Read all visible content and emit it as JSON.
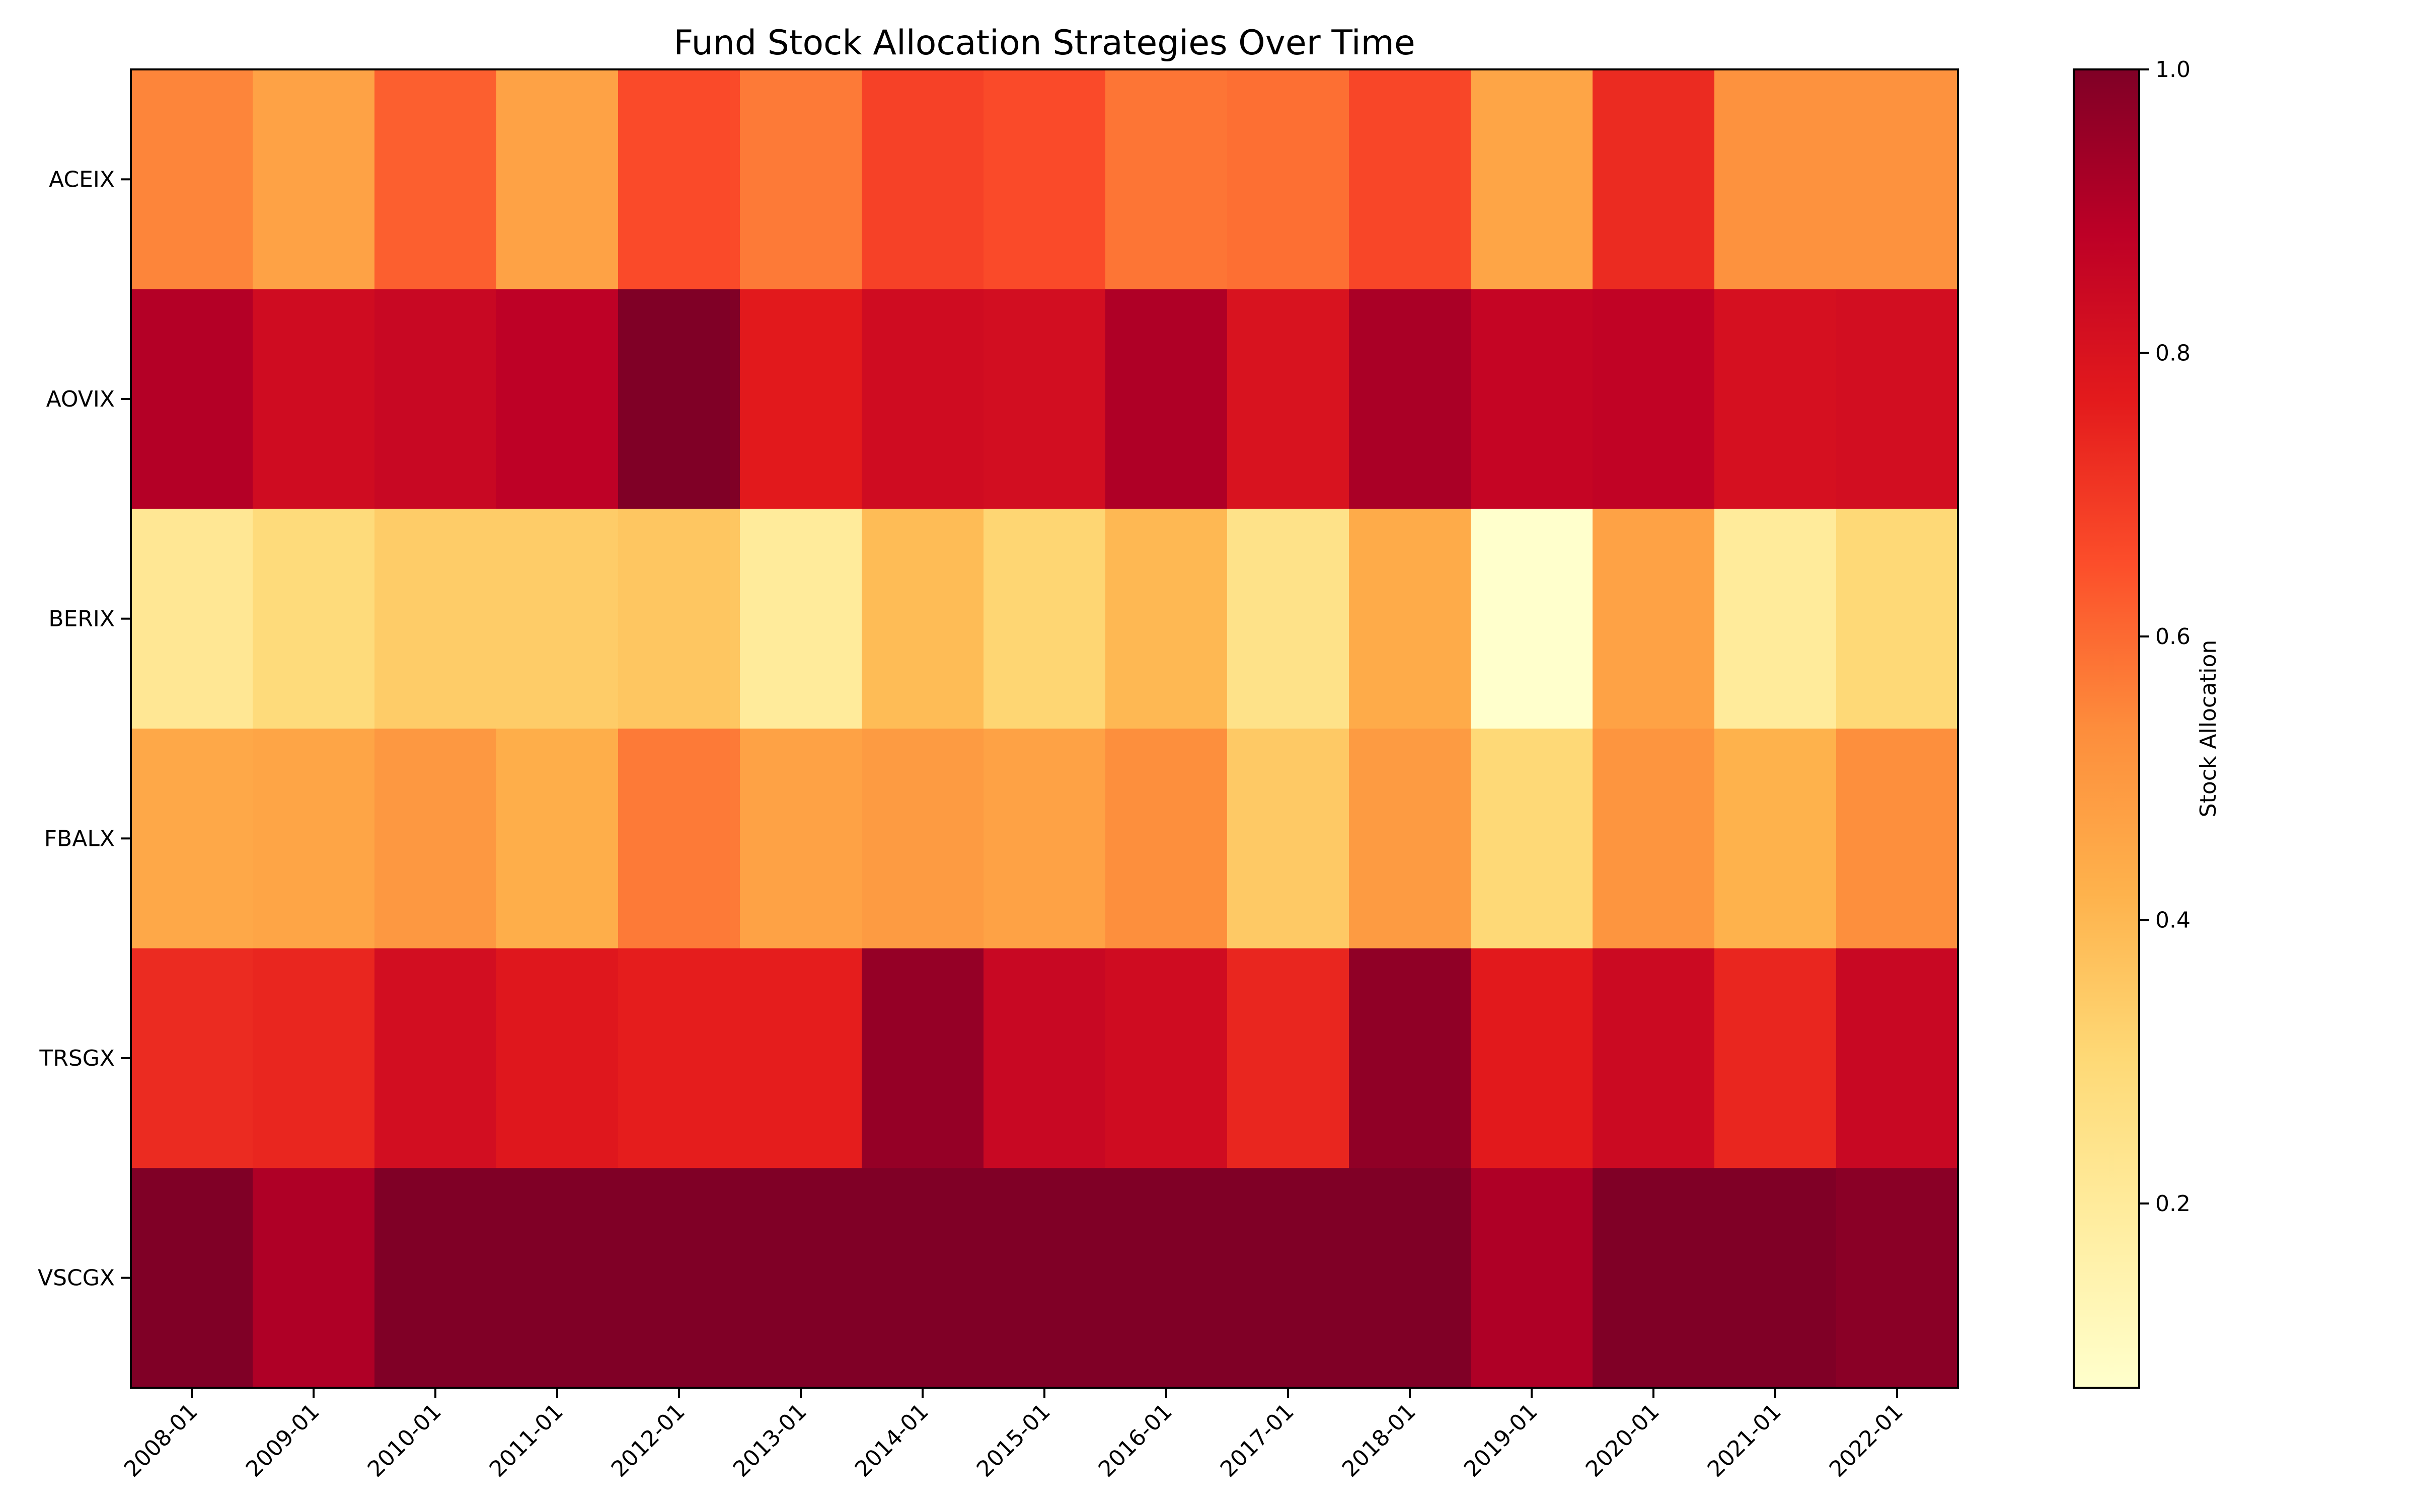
{
  "chart_data": {
    "type": "heatmap",
    "title": "Fund Stock Allocation Strategies Over Time",
    "xlabel": "",
    "ylabel": "",
    "colormap": "YlOrRd",
    "color_range": [
      0.07,
      1.0
    ],
    "colorbar": {
      "label": "Stock Allocation",
      "ticks": [
        0.2,
        0.4,
        0.6,
        0.8,
        1.0
      ],
      "tick_labels": [
        "0.2",
        "0.4",
        "0.6",
        "0.8",
        "1.0"
      ]
    },
    "x_categories": [
      "2008-01",
      "2009-01",
      "2010-01",
      "2011-01",
      "2012-01",
      "2013-01",
      "2014-01",
      "2015-01",
      "2016-01",
      "2017-01",
      "2018-01",
      "2019-01",
      "2020-01",
      "2021-01",
      "2022-01"
    ],
    "y_categories": [
      "ACEIX",
      "AOVIX",
      "BERIX",
      "FBALX",
      "TRSGX",
      "VSCGX"
    ],
    "values": [
      [
        0.55,
        0.47,
        0.62,
        0.47,
        0.66,
        0.57,
        0.68,
        0.66,
        0.58,
        0.59,
        0.67,
        0.46,
        0.73,
        0.52,
        0.52
      ],
      [
        0.9,
        0.83,
        0.85,
        0.88,
        1.0,
        0.77,
        0.83,
        0.82,
        0.91,
        0.8,
        0.92,
        0.86,
        0.87,
        0.81,
        0.82
      ],
      [
        0.22,
        0.29,
        0.34,
        0.34,
        0.36,
        0.2,
        0.39,
        0.31,
        0.4,
        0.25,
        0.44,
        0.07,
        0.47,
        0.2,
        0.3
      ],
      [
        0.45,
        0.46,
        0.5,
        0.43,
        0.57,
        0.47,
        0.49,
        0.47,
        0.53,
        0.35,
        0.49,
        0.3,
        0.51,
        0.42,
        0.53
      ],
      [
        0.73,
        0.74,
        0.82,
        0.78,
        0.76,
        0.76,
        0.96,
        0.85,
        0.83,
        0.74,
        0.97,
        0.77,
        0.84,
        0.74,
        0.85
      ],
      [
        1.0,
        0.91,
        1.0,
        1.0,
        1.0,
        1.0,
        1.0,
        1.0,
        1.0,
        1.0,
        1.0,
        0.91,
        1.0,
        1.0,
        0.98
      ]
    ]
  }
}
